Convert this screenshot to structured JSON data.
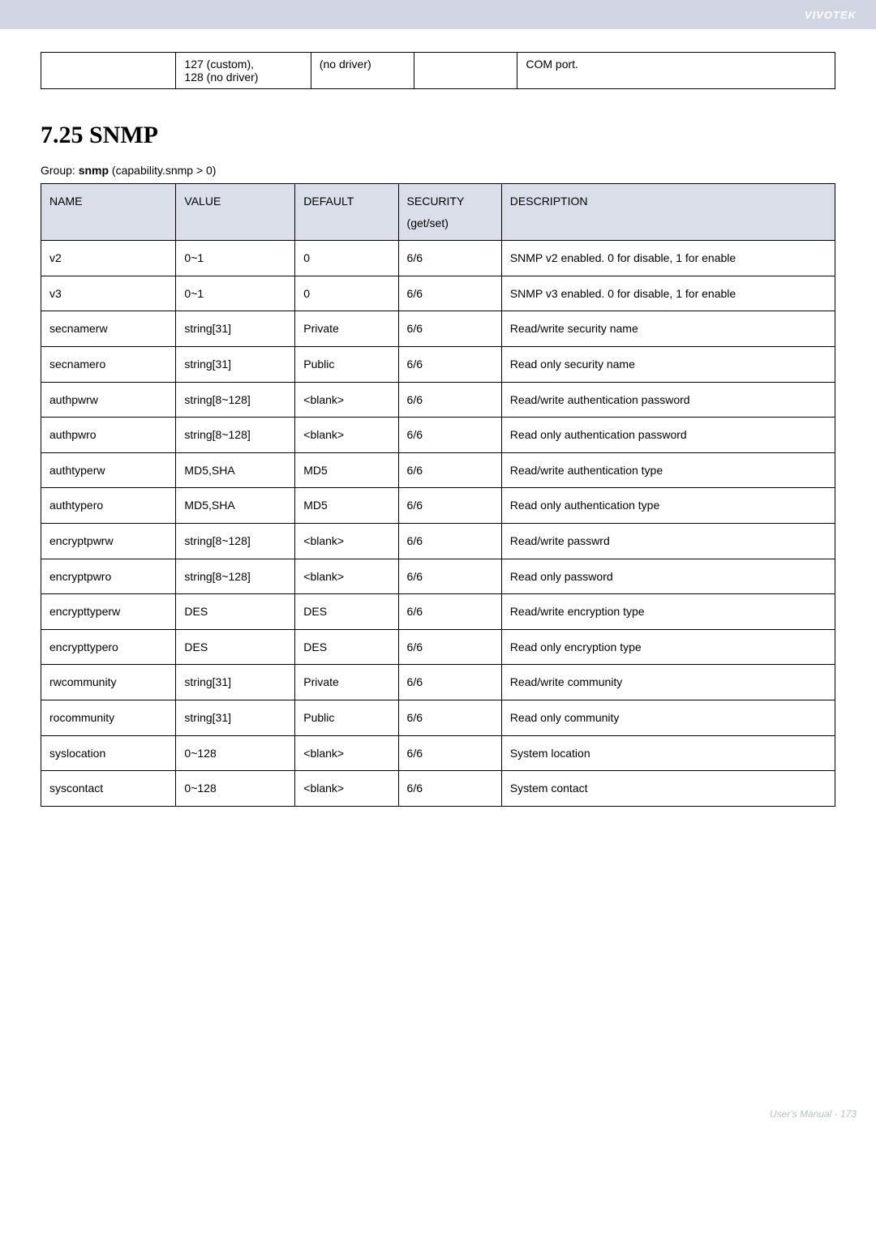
{
  "header": {
    "brand": "VIVOTEK"
  },
  "top_table": {
    "cells": {
      "c1": "",
      "c2a": "127 (custom),",
      "c2b": "128 (no driver)",
      "c3": "(no driver)",
      "c4": "",
      "c5": "COM port."
    }
  },
  "section": {
    "title": "7.25 SNMP",
    "group_prefix": "Group: ",
    "group_bold": "snmp",
    "group_suffix": " (capability.snmp > 0)"
  },
  "table": {
    "headers": {
      "name": "NAME",
      "value": "VALUE",
      "default": "DEFAULT",
      "security_a": "SECURITY",
      "security_b": "(get/set)",
      "description": "DESCRIPTION"
    },
    "rows": [
      {
        "name": "v2",
        "value": "0~1",
        "default": "0",
        "security": "6/6",
        "desc": "SNMP v2 enabled. 0 for disable, 1 for enable"
      },
      {
        "name": "v3",
        "value": "0~1",
        "default": "0",
        "security": "6/6",
        "desc": "SNMP v3 enabled. 0 for disable, 1 for enable"
      },
      {
        "name": "secnamerw",
        "value": "string[31]",
        "default": "Private",
        "security": "6/6",
        "desc": "Read/write security name"
      },
      {
        "name": "secnamero",
        "value": "string[31]",
        "default": "Public",
        "security": "6/6",
        "desc": "Read only security name"
      },
      {
        "name": "authpwrw",
        "value": "string[8~128]",
        "default": "<blank>",
        "security": "6/6",
        "desc": "Read/write authentication password"
      },
      {
        "name": "authpwro",
        "value": "string[8~128]",
        "default": "<blank>",
        "security": "6/6",
        "desc": "Read only authentication password"
      },
      {
        "name": "authtyperw",
        "value": "MD5,SHA",
        "default": "MD5",
        "security": "6/6",
        "desc": "Read/write authentication type"
      },
      {
        "name": "authtypero",
        "value": "MD5,SHA",
        "default": "MD5",
        "security": "6/6",
        "desc": "Read only authentication type"
      },
      {
        "name": "encryptpwrw",
        "value": "string[8~128]",
        "default": "<blank>",
        "security": "6/6",
        "desc": "Read/write passwrd"
      },
      {
        "name": "encryptpwro",
        "value": "string[8~128]",
        "default": "<blank>",
        "security": "6/6",
        "desc": "Read only password"
      },
      {
        "name": "encrypttyperw",
        "value": "DES",
        "default": "DES",
        "security": "6/6",
        "desc": "Read/write encryption type"
      },
      {
        "name": "encrypttypero",
        "value": "DES",
        "default": "DES",
        "security": "6/6",
        "desc": "Read only encryption type"
      },
      {
        "name": "rwcommunity",
        "value": "string[31]",
        "default": "Private",
        "security": "6/6",
        "desc": "Read/write community"
      },
      {
        "name": "rocommunity",
        "value": "string[31]",
        "default": "Public",
        "security": "6/6",
        "desc": "Read only community"
      },
      {
        "name": "syslocation",
        "value": "0~128",
        "default": "<blank>",
        "security": "6/6",
        "desc": "System location"
      },
      {
        "name": "syscontact",
        "value": "0~128",
        "default": "<blank>",
        "security": "6/6",
        "desc": "System contact"
      }
    ]
  },
  "footer": {
    "text": "User's Manual - 173"
  }
}
